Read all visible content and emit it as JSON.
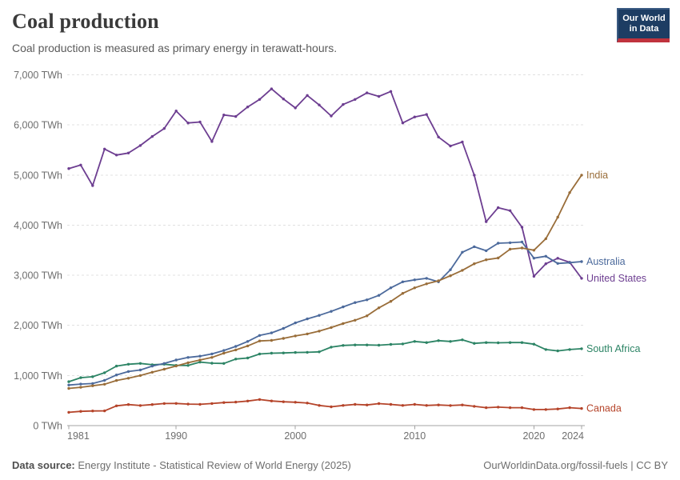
{
  "header": {
    "title": "Coal production",
    "subtitle": "Coal production is measured as primary energy in terawatt-hours."
  },
  "logo": {
    "line1": "Our World",
    "line2": "in Data",
    "bg_color": "#1d3d63",
    "accent_color": "#c0333d"
  },
  "footer": {
    "source_label": "Data source:",
    "source_text": " Energy Institute - Statistical Review of World Energy (2025)",
    "link_text": "OurWorldinData.org/fossil-fuels",
    "separator": " | ",
    "license_text": "CC BY"
  },
  "chart_data": {
    "type": "line",
    "unit": "TWh",
    "title": "Coal production",
    "xlabel": "",
    "ylabel": "",
    "xlim": [
      1981,
      2024
    ],
    "ylim": [
      0,
      7000
    ],
    "grid": "horizontal-dashed",
    "legend_position": "end-of-line-labels",
    "markers": true,
    "x": [
      1981,
      1982,
      1983,
      1984,
      1985,
      1986,
      1987,
      1988,
      1989,
      1990,
      1991,
      1992,
      1993,
      1994,
      1995,
      1996,
      1997,
      1998,
      1999,
      2000,
      2001,
      2002,
      2003,
      2004,
      2005,
      2006,
      2007,
      2008,
      2009,
      2010,
      2011,
      2012,
      2013,
      2014,
      2015,
      2016,
      2017,
      2018,
      2019,
      2020,
      2021,
      2022,
      2023,
      2024
    ],
    "x_ticks": [
      {
        "value": 1981,
        "label": "1981",
        "align": "start"
      },
      {
        "value": 1990,
        "label": "1990",
        "align": "middle"
      },
      {
        "value": 2000,
        "label": "2000",
        "align": "middle"
      },
      {
        "value": 2010,
        "label": "2010",
        "align": "middle"
      },
      {
        "value": 2020,
        "label": "2020",
        "align": "middle"
      },
      {
        "value": 2024,
        "label": "2024",
        "align": "end"
      }
    ],
    "y_ticks": [
      {
        "value": 0,
        "label": "0 TWh"
      },
      {
        "value": 1000,
        "label": "1,000 TWh"
      },
      {
        "value": 2000,
        "label": "2,000 TWh"
      },
      {
        "value": 3000,
        "label": "3,000 TWh"
      },
      {
        "value": 4000,
        "label": "4,000 TWh"
      },
      {
        "value": 5000,
        "label": "5,000 TWh"
      },
      {
        "value": 6000,
        "label": "6,000 TWh"
      },
      {
        "value": 7000,
        "label": "7,000 TWh"
      }
    ],
    "series": [
      {
        "name": "India",
        "color": "#996d39",
        "values": [
          742,
          765,
          795,
          825,
          900,
          945,
          1000,
          1065,
          1125,
          1190,
          1255,
          1310,
          1360,
          1445,
          1510,
          1590,
          1690,
          1700,
          1740,
          1790,
          1830,
          1885,
          1958,
          2038,
          2103,
          2190,
          2350,
          2480,
          2640,
          2750,
          2830,
          2890,
          2990,
          3100,
          3230,
          3310,
          3345,
          3520,
          3545,
          3500,
          3730,
          4160,
          4650,
          5000
        ]
      },
      {
        "name": "Australia",
        "color": "#4c6a9c",
        "values": [
          810,
          828,
          840,
          903,
          1010,
          1080,
          1110,
          1188,
          1240,
          1310,
          1360,
          1386,
          1430,
          1500,
          1580,
          1680,
          1800,
          1850,
          1940,
          2050,
          2130,
          2200,
          2280,
          2370,
          2455,
          2510,
          2600,
          2750,
          2870,
          2910,
          2940,
          2870,
          3110,
          3460,
          3570,
          3490,
          3640,
          3650,
          3665,
          3342,
          3380,
          3236,
          3252,
          3273
        ]
      },
      {
        "name": "United States",
        "color": "#6d3e91",
        "values": [
          5130,
          5200,
          4790,
          5520,
          5400,
          5440,
          5590,
          5770,
          5930,
          6280,
          6040,
          6060,
          5670,
          6200,
          6170,
          6360,
          6510,
          6720,
          6520,
          6340,
          6590,
          6400,
          6180,
          6410,
          6510,
          6640,
          6570,
          6670,
          6040,
          6160,
          6210,
          5760,
          5580,
          5660,
          5000,
          4070,
          4350,
          4290,
          3960,
          2980,
          3230,
          3340,
          3260,
          2940
        ]
      },
      {
        "name": "South Africa",
        "color": "#2c8465",
        "values": [
          876,
          956,
          975,
          1055,
          1188,
          1225,
          1240,
          1215,
          1225,
          1203,
          1200,
          1268,
          1245,
          1241,
          1328,
          1350,
          1429,
          1445,
          1450,
          1460,
          1463,
          1472,
          1567,
          1600,
          1610,
          1610,
          1605,
          1620,
          1630,
          1679,
          1658,
          1695,
          1679,
          1711,
          1642,
          1658,
          1652,
          1658,
          1658,
          1626,
          1519,
          1492,
          1519,
          1535
        ]
      },
      {
        "name": "Canada",
        "color": "#b5442a",
        "values": [
          265,
          285,
          292,
          293,
          395,
          420,
          400,
          420,
          440,
          442,
          430,
          425,
          440,
          460,
          470,
          490,
          520,
          492,
          476,
          466,
          450,
          402,
          375,
          402,
          423,
          412,
          439,
          423,
          402,
          423,
          402,
          412,
          401,
          412,
          385,
          358,
          369,
          358,
          358,
          321,
          321,
          332,
          358,
          342
        ]
      }
    ]
  }
}
